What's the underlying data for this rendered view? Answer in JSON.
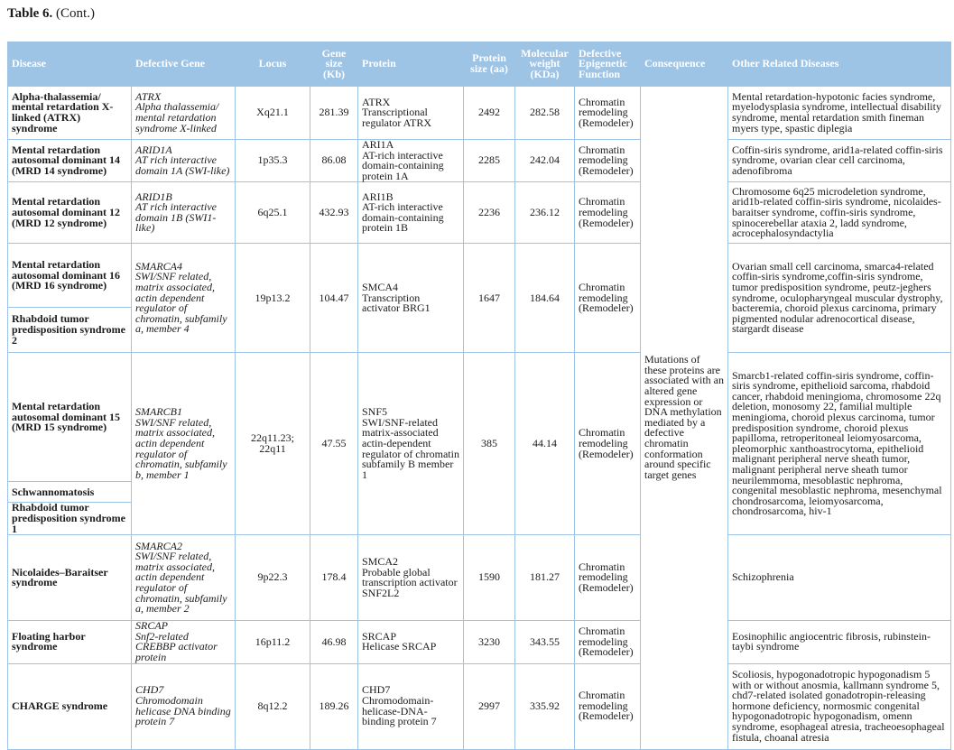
{
  "caption": {
    "label": "Table 6.",
    "suffix": " (Cont.)"
  },
  "header": {
    "disease": "Disease",
    "gene": "Defective Gene",
    "locus": "Locus",
    "gene_size": "Gene size (Kb)",
    "protein": "Protein",
    "protein_size": "Protein size (aa)",
    "mw": "Molecular weight (KDa)",
    "function": "Defective Epigenetic Function",
    "consequence": "Consequence",
    "other": "Other Related Diseases"
  },
  "consequence": "Mutations of these proteins are associated with an altered gene expression or DNA methylation mediated by a defective chromatin conformation around specific target genes",
  "colors": {
    "header_bg": "#9dc3e5",
    "border": "#9fc3e6",
    "header_text": "#ffffff"
  },
  "rows": [
    {
      "diseases": [
        "Alpha-thalassemia/ mental retardation X-linked (ATRX) syndrome"
      ],
      "gene_symbol": "ATRX",
      "gene_desc": "Alpha thalassemia/ mental retardation syndrome X-linked",
      "locus": "Xq21.1",
      "gene_size": "281.39",
      "protein_name": "ATRX",
      "protein_desc": "Transcriptional regulator ATRX",
      "protein_size": "2492",
      "mw": "282.58",
      "function": "Chromatin remodeling (Remodeler)",
      "other": "Mental retardation-hypotonic facies syndrome, myelodysplasia syndrome, intellectual disability syndrome, mental retardation smith fineman myers type, spastic diplegia"
    },
    {
      "diseases": [
        "Mental retardation autosomal dominant 14 (MRD 14 syndrome)"
      ],
      "gene_symbol": "ARID1A",
      "gene_desc": "AT rich interactive domain 1A (SWI-like)",
      "locus": "1p35.3",
      "gene_size": "86.08",
      "protein_name": "ARI1A",
      "protein_desc": "AT-rich interactive domain-containing protein 1A",
      "protein_size": "2285",
      "mw": "242.04",
      "function": "Chromatin remodeling (Remodeler)",
      "other": "Coffin-siris syndrome, arid1a-related coffin-siris syndrome, ovarian clear cell carcinoma, adenofibroma"
    },
    {
      "diseases": [
        "Mental retardation autosomal dominant 12 (MRD 12 syndrome)"
      ],
      "gene_symbol": "ARID1B",
      "gene_desc": "AT rich interactive domain 1B (SWI1-like)",
      "locus": "6q25.1",
      "gene_size": "432.93",
      "protein_name": "ARI1B",
      "protein_desc": "AT-rich interactive domain-containing protein 1B",
      "protein_size": "2236",
      "mw": "236.12",
      "function": "Chromatin remodeling (Remodeler)",
      "other": "Chromosome 6q25 microdeletion syndrome, arid1b-related coffin-siris syndrome, nicolaides-baraitser syndrome, coffin-siris syndrome, spinocerebellar ataxia 2, ladd syndrome, acrocephalosyndactylia"
    },
    {
      "diseases": [
        "Mental retardation autosomal dominant 16 (MRD 16 syndrome)",
        "Rhabdoid tumor predisposition syndrome 2"
      ],
      "gene_symbol": "SMARCA4",
      "gene_desc": "SWI/SNF related, matrix associated, actin dependent regulator of chromatin, subfamily a, member 4",
      "locus": "19p13.2",
      "gene_size": "104.47",
      "protein_name": "SMCA4",
      "protein_desc": "Transcription activator BRG1",
      "protein_size": "1647",
      "mw": "184.64",
      "function": "Chromatin remodeling (Remodeler)",
      "other": "Ovarian small cell carcinoma, smarca4-related coffin-siris syndrome,coffin-siris syndrome, tumor predisposition syndrome, peutz-jeghers syndrome, oculopharyngeal muscular dystrophy, bacteremia, choroid plexus carcinoma, primary pigmented nodular adrenocortical disease, stargardt disease"
    },
    {
      "diseases": [
        "Mental retardation autosomal dominant 15 (MRD 15 syndrome)",
        "Schwannomatosis",
        "Rhabdoid tumor predisposition syndrome 1"
      ],
      "gene_symbol": "SMARCB1",
      "gene_desc": "SWI/SNF related, matrix associated, actin dependent regulator of chromatin, subfamily b, member 1",
      "locus": "22q11.23; 22q11",
      "gene_size": "47.55",
      "protein_name": "SNF5",
      "protein_desc": "SWI/SNF-related matrix-associated actin-dependent regulator of chromatin subfamily B member 1",
      "protein_size": "385",
      "mw": "44.14",
      "function": "Chromatin remodeling (Remodeler)",
      "other": "Smarcb1-related coffin-siris syndrome, coffin-siris syndrome, epithelioid sarcoma, rhabdoid cancer, rhabdoid meningioma, chromosome 22q deletion, monosomy 22, familial multiple meningioma, choroid plexus carcinoma, tumor predisposition syndrome, choroid plexus papilloma, retroperitoneal leiomyosarcoma, pleomorphic xanthoastrocytoma, epithelioid malignant peripheral nerve sheath tumor, malignant peripheral nerve sheath tumor neurilemmoma, mesoblastic nephroma, congenital mesoblastic nephroma, mesenchymal chondrosarcoma, leiomyosarcoma, chondrosarcoma, hiv-1"
    },
    {
      "diseases": [
        "Nicolaides–Baraitser syndrome"
      ],
      "gene_symbol": "SMARCA2",
      "gene_desc": "SWI/SNF related, matrix associated, actin dependent regulator of chromatin, subfamily a, member 2",
      "locus": "9p22.3",
      "gene_size": "178.4",
      "protein_name": "SMCA2",
      "protein_desc": "Probable global transcription activator SNF2L2",
      "protein_size": "1590",
      "mw": "181.27",
      "function": "Chromatin remodeling (Remodeler)",
      "other": "Schizophrenia"
    },
    {
      "diseases": [
        "Floating harbor syndrome"
      ],
      "gene_symbol": "SRCAP",
      "gene_desc": "Snf2-related CREBBP activator protein",
      "locus": "16p11.2",
      "gene_size": "46.98",
      "protein_name": "SRCAP",
      "protein_desc": "Helicase SRCAP",
      "protein_size": "3230",
      "mw": "343.55",
      "function": "Chromatin remodeling (Remodeler)",
      "other": "Eosinophilic angiocentric fibrosis, rubinstein-taybi syndrome"
    },
    {
      "diseases": [
        "CHARGE syndrome"
      ],
      "gene_symbol": "CHD7",
      "gene_desc": "Chromodomain helicase DNA binding protein 7",
      "locus": "8q12.2",
      "gene_size": "189.26",
      "protein_name": "CHD7",
      "protein_desc": "Chromodomain-helicase-DNA-binding protein 7",
      "protein_size": "2997",
      "mw": "335.92",
      "function": "Chromatin remodeling (Remodeler)",
      "other": "Scoliosis, hypogonadotropic hypogonadism 5 with or without anosmia, kallmann syndrome 5, chd7-related isolated gonadotropin-releasing hormone deficiency, normosmic congenital hypogonadotropic hypogonadism, omenn syndrome, esophageal atresia, tracheoesophageal fistula, choanal atresia"
    }
  ]
}
